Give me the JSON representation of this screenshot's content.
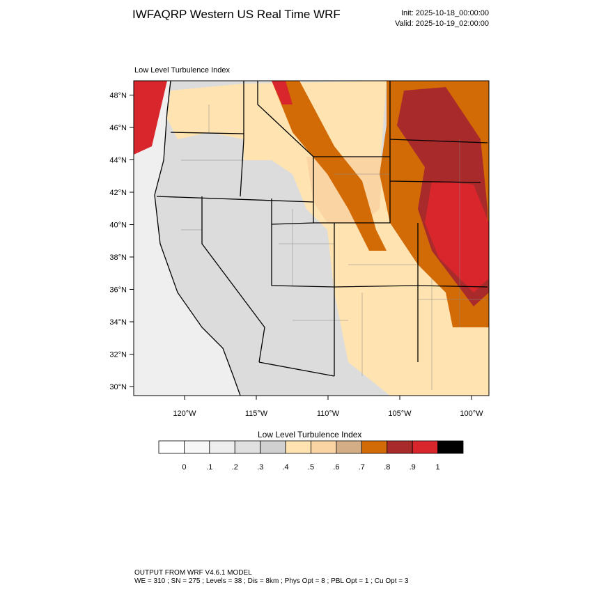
{
  "header": {
    "title": "IWFAQRP Western US Real Time WRF",
    "init": "Init: 2025-10-18_00:00:00",
    "valid": "Valid: 2025-10-19_02:00:00"
  },
  "map": {
    "label": "Low Level Turbulence Index",
    "lat_labels": [
      "30°N",
      "32°N",
      "34°N",
      "36°N",
      "38°N",
      "40°N",
      "42°N",
      "44°N",
      "46°N",
      "48°N"
    ],
    "lon_labels": [
      "120°W",
      "115°W",
      "110°W",
      "105°W",
      "100°W"
    ]
  },
  "colorbar": {
    "title": "Low Level Turbulence Index",
    "colors": [
      "#ffffff",
      "#f7f7f7",
      "#eeeeee",
      "#e0e0e0",
      "#d0d0d0",
      "#ffe3b0",
      "#fad4a3",
      "#d2ad86",
      "#d26a06",
      "#a82a2a",
      "#d8262c",
      "#000000"
    ],
    "labels": [
      "0",
      ".1",
      ".2",
      ".3",
      ".4",
      ".5",
      ".6",
      ".7",
      ".8",
      ".9",
      "1"
    ]
  },
  "footer": {
    "line1": "OUTPUT FROM WRF V4.6.1 MODEL",
    "line2": "WE = 310 ; SN = 275 ; Levels = 38 ; Dis = 8km ; Phys Opt = 8 ; PBL Opt = 1 ; Cu Opt = 3"
  }
}
